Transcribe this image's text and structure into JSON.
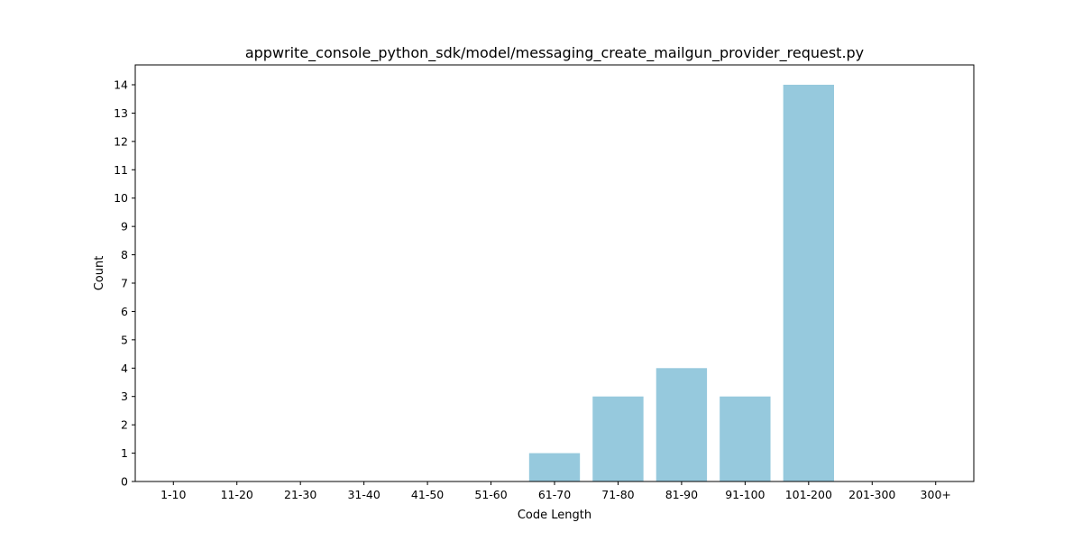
{
  "chart_data": {
    "type": "bar",
    "title": "appwrite_console_python_sdk/model/messaging_create_mailgun_provider_request.py",
    "xlabel": "Code Length",
    "ylabel": "Count",
    "categories": [
      "1-10",
      "11-20",
      "21-30",
      "31-40",
      "41-50",
      "51-60",
      "61-70",
      "71-80",
      "81-90",
      "91-100",
      "101-200",
      "201-300",
      "300+"
    ],
    "values": [
      0,
      0,
      0,
      0,
      0,
      0,
      1,
      3,
      4,
      3,
      14,
      0,
      0
    ],
    "ylim": [
      0,
      14.7
    ],
    "yticks": [
      0,
      1,
      2,
      3,
      4,
      5,
      6,
      7,
      8,
      9,
      10,
      11,
      12,
      13,
      14
    ],
    "bar_color": "#96c9dd",
    "grid": false,
    "legend": "none"
  }
}
